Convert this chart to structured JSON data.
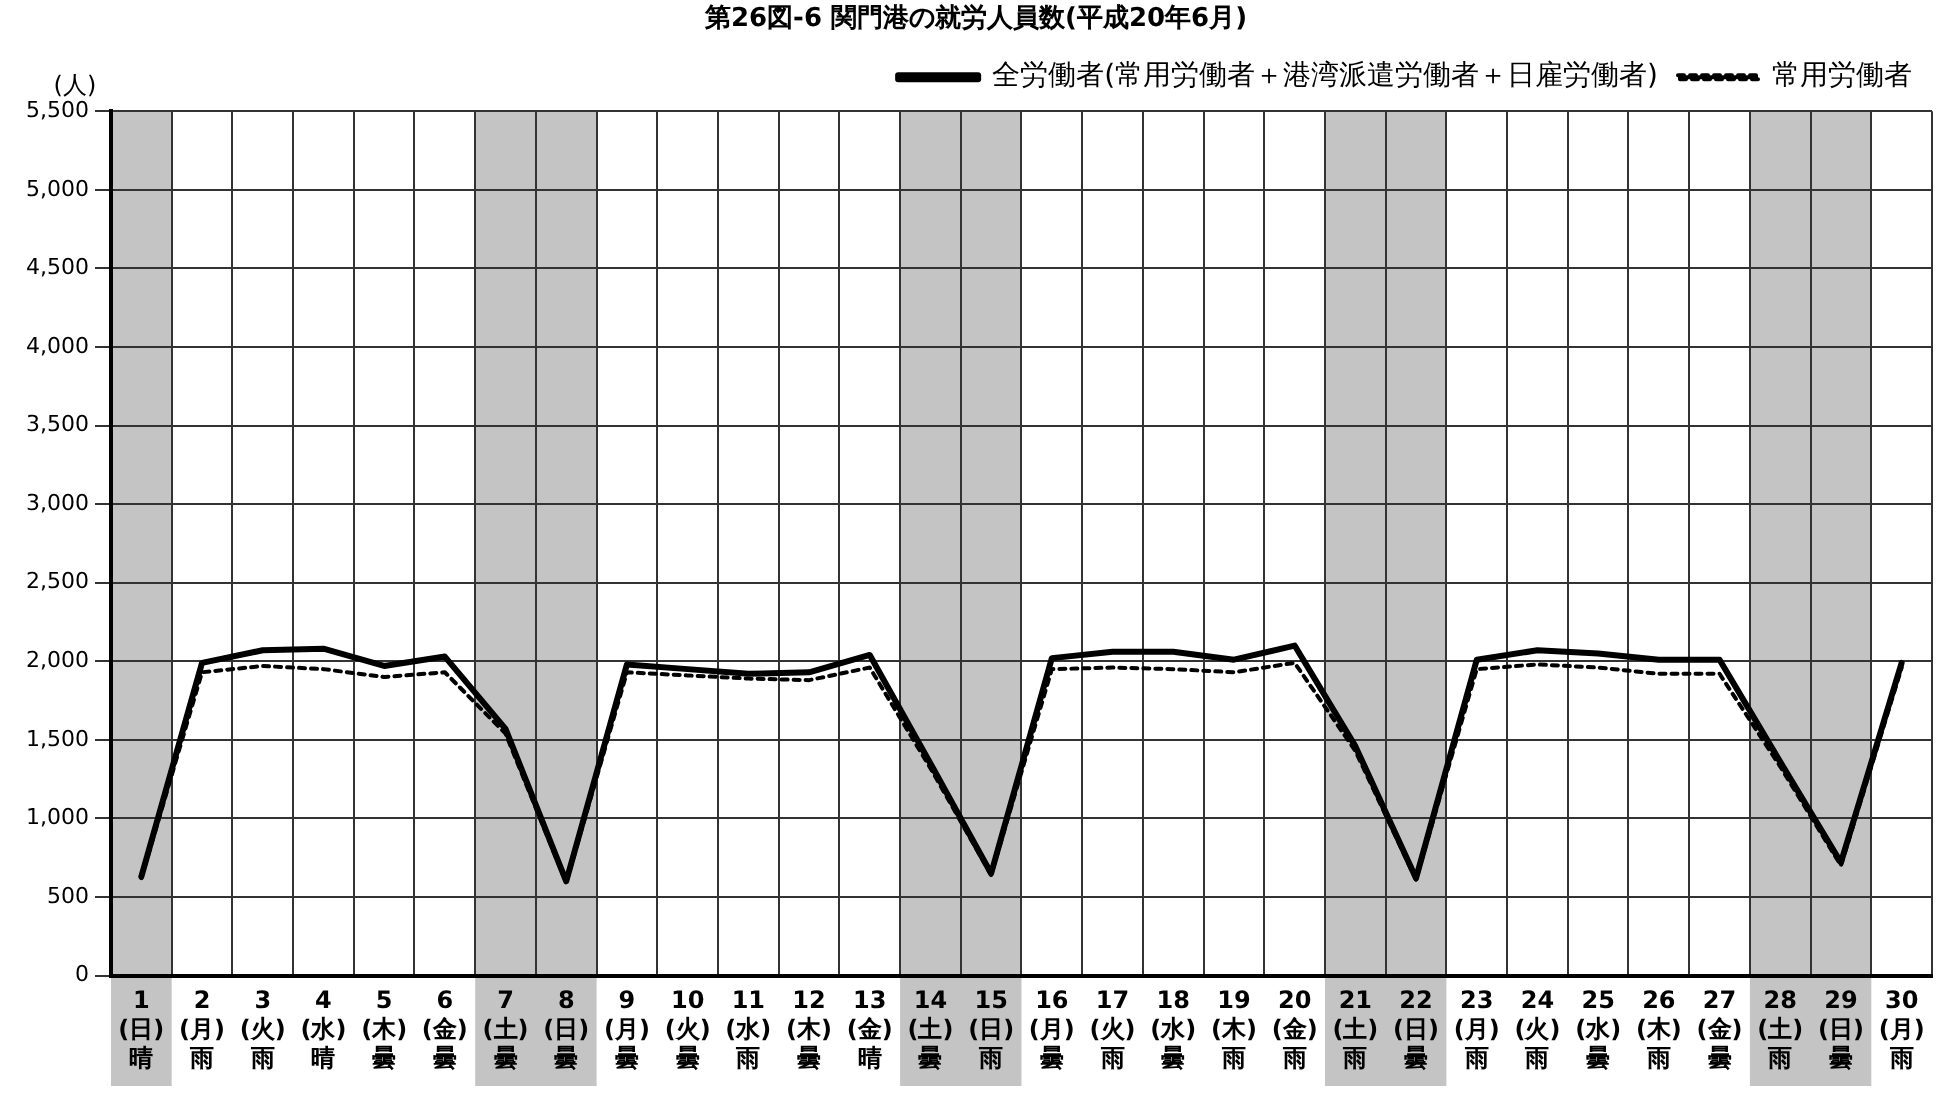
{
  "chart_data": {
    "type": "line",
    "title": "第26図-6 関門港の就労人員数(平成20年6月)",
    "ylabel": "(人)",
    "categories": [
      "1\n(日)\n晴",
      "2\n(月)\n雨",
      "3\n(火)\n雨",
      "4\n(水)\n晴",
      "5\n(木)\n曇",
      "6\n(金)\n曇",
      "7\n(土)\n曇",
      "8\n(日)\n曇",
      "9\n(月)\n曇",
      "10\n(火)\n曇",
      "11\n(水)\n雨",
      "12\n(木)\n曇",
      "13\n(金)\n晴",
      "14\n(土)\n曇",
      "15\n(日)\n雨",
      "16\n(月)\n曇",
      "17\n(火)\n雨",
      "18\n(水)\n曇",
      "19\n(木)\n雨",
      "20\n(金)\n雨",
      "21\n(土)\n雨",
      "22\n(日)\n曇",
      "23\n(月)\n雨",
      "24\n(火)\n雨",
      "25\n(水)\n曇",
      "26\n(木)\n雨",
      "27\n(金)\n曇",
      "28\n(土)\n雨",
      "29\n(日)\n曇",
      "30\n(月)\n雨"
    ],
    "series": [
      {
        "name": "全労働者(常用労働者＋港湾派遣労働者＋日雇労働者)",
        "color": "#000000",
        "line_style": "solid",
        "values": [
          630,
          1990,
          2070,
          2080,
          1970,
          2030,
          1570,
          600,
          1980,
          1950,
          1920,
          1930,
          2040,
          1350,
          650,
          2020,
          2060,
          2060,
          2010,
          2100,
          1460,
          620,
          2010,
          2070,
          2050,
          2010,
          2010,
          1360,
          720,
          1990
        ]
      },
      {
        "name": "常用労働者",
        "color": "#000000",
        "line_style": "dotted",
        "values": [
          620,
          1930,
          1970,
          1950,
          1900,
          1930,
          1540,
          590,
          1930,
          1910,
          1890,
          1880,
          1960,
          1320,
          640,
          1950,
          1960,
          1950,
          1930,
          1990,
          1430,
          610,
          1950,
          1980,
          1960,
          1920,
          1920,
          1330,
          700,
          1960
        ]
      }
    ],
    "ylim": [
      0,
      5500
    ],
    "yticks": [
      0,
      500,
      {
        "value": 1000,
        "label": "1,000"
      },
      {
        "value": 1500,
        "label": "1,500"
      },
      {
        "value": 2000,
        "label": "2,000"
      },
      {
        "value": 2500,
        "label": "2,500"
      },
      {
        "value": 3000,
        "label": "3,000"
      },
      {
        "value": 3500,
        "label": "3,500"
      },
      {
        "value": 4000,
        "label": "4,000"
      },
      {
        "value": 4500,
        "label": "4,500"
      },
      {
        "value": 5000,
        "label": "5,000"
      },
      {
        "value": 5500,
        "label": "5,500"
      }
    ],
    "bands": [
      {
        "axis": "x",
        "from": "1\n(日)\n晴",
        "to": "1\n(日)\n晴",
        "color": "#c4c4c4"
      },
      {
        "axis": "x",
        "from": "7\n(土)\n曇",
        "to": "8\n(日)\n曇",
        "color": "#c4c4c4"
      },
      {
        "axis": "x",
        "from": "14\n(土)\n曇",
        "to": "15\n(日)\n雨",
        "color": "#c4c4c4"
      },
      {
        "axis": "x",
        "from": "21\n(土)\n雨",
        "to": "22\n(日)\n曇",
        "color": "#c4c4c4"
      },
      {
        "axis": "x",
        "from": "28\n(土)\n雨",
        "to": "29\n(日)\n曇",
        "color": "#c4c4c4"
      }
    ],
    "grid": true,
    "legend": "top right",
    "marker": "none"
  }
}
